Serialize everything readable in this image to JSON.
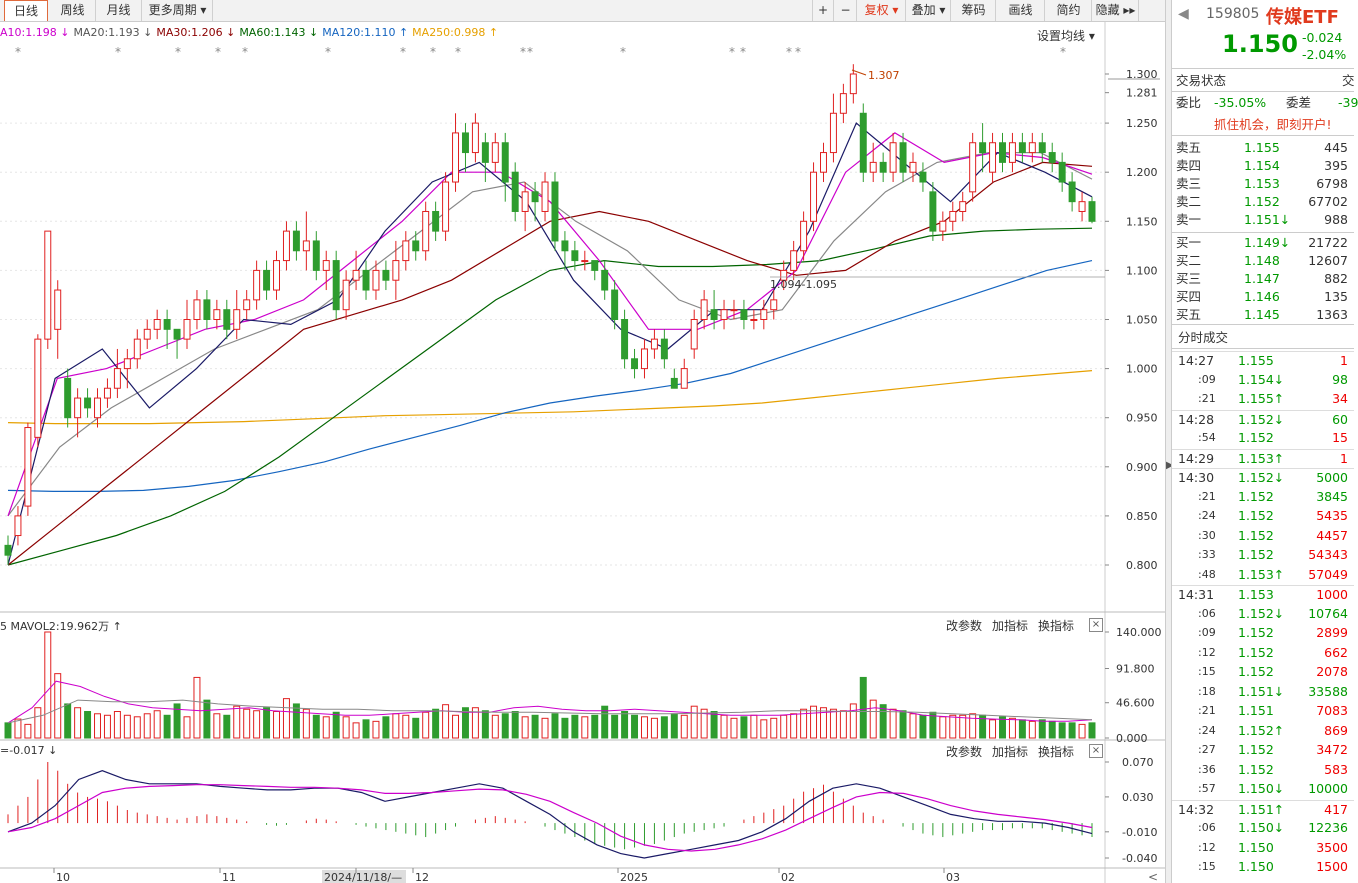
{
  "toolbar": {
    "tabs": [
      "日线",
      "周线",
      "月线",
      "更多周期 ▾"
    ],
    "right": [
      "复权 ▾",
      "叠加 ▾",
      "筹码",
      "画线",
      "简约",
      "隐藏 ▸▸"
    ],
    "plus": "+",
    "minus": "−"
  },
  "ma_legend": [
    {
      "text": "A10:1.198 ↓",
      "color": "#cc00cc"
    },
    {
      "text": "MA20:1.193 ↓",
      "color": "#555555"
    },
    {
      "text": "MA30:1.206 ↓",
      "color": "#8b0000"
    },
    {
      "text": "MA60:1.143 ↓",
      "color": "#006400"
    },
    {
      "text": "MA120:1.110 ↑",
      "color": "#1565c0"
    },
    {
      "text": "MA250:0.998 ↑",
      "color": "#e6a000"
    }
  ],
  "setting_ma": "设置均线 ▾",
  "price_labels": {
    "high": "1.307",
    "range": "1.094-1.095"
  },
  "y_axis": [
    "1.300",
    "1.281",
    "1.250",
    "1.200",
    "1.150",
    "1.100",
    "1.050",
    "1.000",
    "0.950",
    "0.900",
    "0.850",
    "0.800"
  ],
  "vol_axis": [
    "140.000",
    "91.800",
    "46.600",
    "0.000"
  ],
  "macd_axis": [
    "0.070",
    "0.030",
    "-0.010",
    "-0.040"
  ],
  "x_axis": [
    "10",
    "11",
    "2024/11/18/—",
    "12",
    "2025",
    "02",
    "03"
  ],
  "vol_legend": "5  MAVOL2:19.962万 ↑",
  "macd_legend": "=-0.017 ↓",
  "indicator_buttons": [
    "改参数",
    "加指标",
    "换指标"
  ],
  "close": "×",
  "stock": {
    "code": "159805",
    "name": "传媒ETF",
    "price": "1.150",
    "change": "-0.024",
    "pct": "-2.04%"
  },
  "trade_status": {
    "label": "交易状态",
    "right": "交"
  },
  "weibi": {
    "label": "委比",
    "value": "-35.05%",
    "label2": "委差",
    "value2": "-39"
  },
  "ad": "抓住机会，即刻开户!",
  "sell": [
    {
      "l": "卖五",
      "p": "1.155",
      "v": "445"
    },
    {
      "l": "卖四",
      "p": "1.154",
      "v": "395"
    },
    {
      "l": "卖三",
      "p": "1.153",
      "v": "6798"
    },
    {
      "l": "卖二",
      "p": "1.152",
      "v": "67702"
    },
    {
      "l": "卖一",
      "p": "1.151↓",
      "v": "988"
    }
  ],
  "buy": [
    {
      "l": "买一",
      "p": "1.149↓",
      "v": "21722"
    },
    {
      "l": "买二",
      "p": "1.148",
      "v": "12607"
    },
    {
      "l": "买三",
      "p": "1.147",
      "v": "882"
    },
    {
      "l": "买四",
      "p": "1.146",
      "v": "135"
    },
    {
      "l": "买五",
      "p": "1.145",
      "v": "1363"
    }
  ],
  "ticks_title": "分时成交",
  "ticks": [
    {
      "t": "14:27",
      "p": "1.155",
      "v": "1",
      "c": "r"
    },
    {
      "t": ":09",
      "p": "1.154↓",
      "v": "98",
      "c": "g"
    },
    {
      "t": ":21",
      "p": "1.155↑",
      "v": "34",
      "c": "r"
    },
    {
      "t": "14:28",
      "p": "1.152↓",
      "v": "60",
      "c": "g"
    },
    {
      "t": ":54",
      "p": "1.152",
      "v": "15",
      "c": "r"
    },
    {
      "t": "14:29",
      "p": "1.153↑",
      "v": "1",
      "c": "r"
    },
    {
      "t": "14:30",
      "p": "1.152↓",
      "v": "5000",
      "c": "g"
    },
    {
      "t": ":21",
      "p": "1.152",
      "v": "3845",
      "c": "g"
    },
    {
      "t": ":24",
      "p": "1.152",
      "v": "5435",
      "c": "r"
    },
    {
      "t": ":30",
      "p": "1.152",
      "v": "4457",
      "c": "r"
    },
    {
      "t": ":33",
      "p": "1.152",
      "v": "54343",
      "c": "r"
    },
    {
      "t": ":48",
      "p": "1.153↑",
      "v": "57049",
      "c": "r"
    },
    {
      "t": "14:31",
      "p": "1.153",
      "v": "1000",
      "c": "r"
    },
    {
      "t": ":06",
      "p": "1.152↓",
      "v": "10764",
      "c": "g"
    },
    {
      "t": ":09",
      "p": "1.152",
      "v": "2899",
      "c": "r"
    },
    {
      "t": ":12",
      "p": "1.152",
      "v": "662",
      "c": "r"
    },
    {
      "t": ":15",
      "p": "1.152",
      "v": "2078",
      "c": "r"
    },
    {
      "t": ":18",
      "p": "1.151↓",
      "v": "33588",
      "c": "g"
    },
    {
      "t": ":21",
      "p": "1.151",
      "v": "7083",
      "c": "r"
    },
    {
      "t": ":24",
      "p": "1.152↑",
      "v": "869",
      "c": "r"
    },
    {
      "t": ":27",
      "p": "1.152",
      "v": "3472",
      "c": "r"
    },
    {
      "t": ":36",
      "p": "1.152",
      "v": "583",
      "c": "r"
    },
    {
      "t": ":57",
      "p": "1.150↓",
      "v": "10000",
      "c": "g"
    },
    {
      "t": "14:32",
      "p": "1.151↑",
      "v": "417",
      "c": "r"
    },
    {
      "t": ":06",
      "p": "1.150↓",
      "v": "12236",
      "c": "g"
    },
    {
      "t": ":12",
      "p": "1.150",
      "v": "3500",
      "c": "r"
    },
    {
      "t": ":15",
      "p": "1.150",
      "v": "1500",
      "c": "r"
    }
  ]
}
